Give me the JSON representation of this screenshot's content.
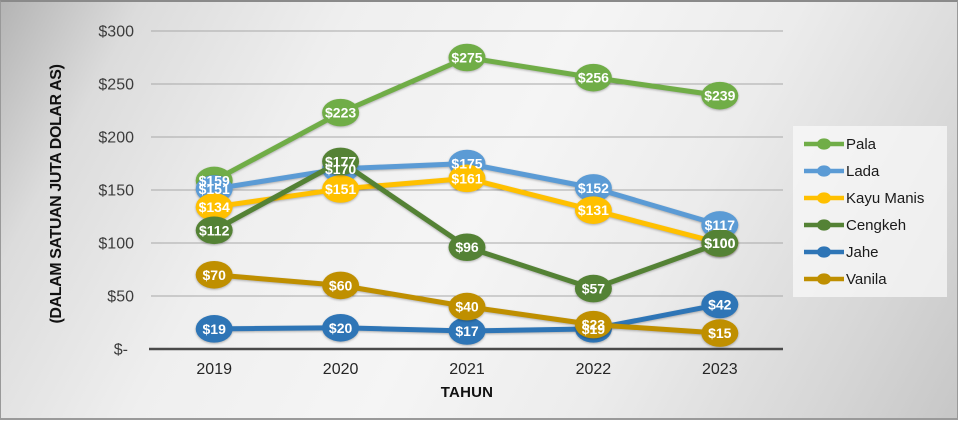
{
  "chart_data": {
    "type": "line",
    "title": "",
    "ylabel": "(DALAM SATUAN JUTA DOLAR AS)",
    "xlabel": "TAHUN",
    "categories": [
      "2019",
      "2020",
      "2021",
      "2022",
      "2023"
    ],
    "y_axis": {
      "min": 0,
      "max": 300,
      "tick_step": 50,
      "tick_labels": [
        "$300",
        "$250",
        "$200",
        "$150",
        "$100",
        "$50",
        "$-"
      ]
    },
    "grid": true,
    "legend_position": "right",
    "series": [
      {
        "name": "Pala",
        "color": "#70AD47",
        "values": [
          159,
          223,
          275,
          256,
          239
        ],
        "data_labels": [
          "$159",
          "$223",
          "$275",
          "$256",
          "$239"
        ]
      },
      {
        "name": "Lada",
        "color": "#5B9BD5",
        "values": [
          151,
          170,
          175,
          152,
          117
        ],
        "data_labels": [
          "$151",
          "$170",
          "$175",
          "$152",
          "$117"
        ]
      },
      {
        "name": "Kayu Manis",
        "color": "#FFC000",
        "values": [
          134,
          151,
          161,
          131,
          100
        ],
        "data_labels": [
          "$134",
          "$151",
          "$161",
          "$131",
          "$100"
        ]
      },
      {
        "name": "Cengkeh",
        "color": "#548235",
        "values": [
          112,
          177,
          96,
          57,
          100
        ],
        "data_labels": [
          "$112",
          "$177",
          "$96",
          "$57",
          "$100"
        ]
      },
      {
        "name": "Jahe",
        "color": "#2E75B6",
        "values": [
          19,
          20,
          17,
          19,
          42
        ],
        "data_labels": [
          "$19",
          "$20",
          "$17",
          "$19",
          "$42"
        ]
      },
      {
        "name": "Vanila",
        "color": "#BF8F00",
        "values": [
          70,
          60,
          40,
          23,
          15
        ],
        "data_labels": [
          "$70",
          "$60",
          "$40",
          "$23",
          "$15"
        ]
      }
    ],
    "axis_colors": {
      "gridline": "#a8a8a8",
      "axis_line": "#4a4a4a",
      "tick_text": "#3c3c3c",
      "category_text": "#262626",
      "data_label_text": "#ffffff"
    }
  }
}
